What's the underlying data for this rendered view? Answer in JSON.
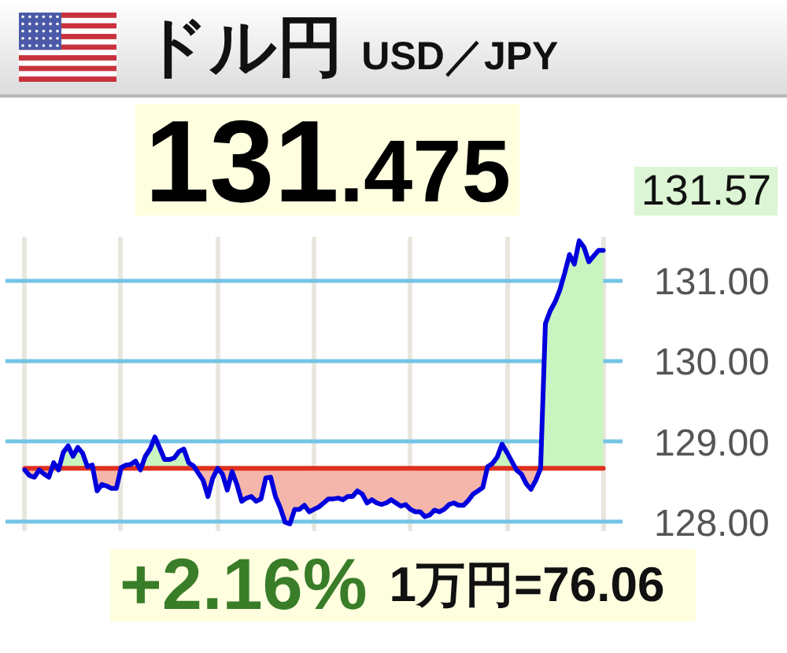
{
  "chart_data": {
    "type": "line",
    "title": "ドル円 USD／JPY",
    "subtitle": "131.475",
    "categories": [
      null,
      null,
      null,
      null,
      null,
      null,
      null,
      null,
      null,
      null,
      null,
      null,
      null,
      null,
      null,
      null,
      null,
      null,
      null,
      null,
      null,
      null,
      null,
      null,
      null,
      null,
      null,
      null,
      null,
      null,
      null,
      null,
      null,
      null,
      null,
      null,
      null,
      null,
      null,
      null,
      null,
      null,
      null,
      null,
      null,
      null,
      null,
      null,
      null,
      null,
      null,
      null,
      null,
      null,
      null,
      null,
      null,
      null,
      null,
      null,
      null,
      null,
      null,
      null,
      null,
      null,
      null,
      null,
      null,
      null,
      null,
      null,
      null,
      null,
      null,
      null,
      null,
      null,
      null,
      null,
      null,
      null,
      null,
      null,
      null,
      null,
      null,
      null,
      null,
      null,
      null,
      null,
      null,
      null,
      null,
      null,
      null,
      null,
      null,
      null,
      null,
      null,
      null,
      null,
      null,
      null,
      null,
      null,
      null,
      null,
      null,
      null,
      null,
      null,
      null,
      null,
      null,
      null,
      null,
      null,
      null
    ],
    "series": [
      {
        "color": "#e0301e",
        "values": [
          128.67,
          128.67,
          128.67,
          128.67,
          128.67,
          128.67,
          128.67,
          128.67,
          128.67,
          128.67,
          128.67,
          128.67,
          128.67,
          128.67,
          128.67,
          128.67,
          128.67,
          128.67,
          128.67,
          128.67,
          128.67,
          128.67,
          128.67,
          128.67,
          128.67,
          128.67,
          128.67,
          128.67,
          128.67,
          128.67,
          128.67,
          128.67,
          128.67,
          128.67,
          128.67,
          128.67,
          128.67,
          128.67,
          128.67,
          128.67,
          128.67,
          128.67,
          128.67,
          128.67,
          128.67,
          128.67,
          128.67,
          128.67,
          128.67,
          128.67,
          128.67,
          128.67,
          128.67,
          128.67,
          128.67,
          128.67,
          128.67,
          128.67,
          128.67,
          128.67,
          128.67,
          128.67,
          128.67,
          128.67,
          128.67,
          128.67,
          128.67,
          128.67,
          128.67,
          128.67,
          128.67,
          128.67,
          128.67,
          128.67,
          128.67,
          128.67,
          128.67,
          128.67,
          128.67,
          128.67,
          128.67,
          128.67,
          128.67,
          128.67,
          128.67,
          128.67,
          128.67,
          128.67,
          128.67,
          128.67,
          128.67,
          128.67,
          128.67,
          128.67,
          128.67,
          128.67,
          128.67,
          128.67,
          128.67,
          128.67,
          128.67,
          128.67,
          128.67,
          128.67,
          128.67,
          128.67,
          128.67,
          128.67,
          128.67,
          128.67,
          128.67,
          128.67,
          128.67,
          128.67,
          128.67,
          128.67,
          128.67,
          128.67,
          128.67,
          128.67,
          128.67
        ],
        "lower": [
          128.65,
          128.58,
          128.56,
          128.65,
          128.6,
          128.56,
          128.67,
          128.65,
          128.67,
          128.67,
          128.67,
          128.67,
          128.67,
          128.67,
          128.67,
          128.39,
          128.47,
          128.45,
          128.42,
          128.42,
          128.67,
          128.67,
          128.67,
          128.67,
          128.65,
          128.67,
          128.67,
          128.67,
          128.67,
          128.67,
          128.67,
          128.67,
          128.67,
          128.67,
          128.67,
          128.67,
          128.61,
          128.52,
          128.32,
          128.55,
          128.67,
          128.6,
          128.4,
          128.63,
          128.47,
          128.26,
          128.3,
          128.32,
          128.26,
          128.29,
          128.55,
          128.56,
          128.32,
          128.18,
          128.0,
          127.98,
          128.16,
          128.16,
          128.21,
          128.13,
          128.16,
          128.19,
          128.24,
          128.29,
          128.29,
          128.3,
          128.28,
          128.32,
          128.32,
          128.39,
          128.35,
          128.24,
          128.28,
          128.24,
          128.22,
          128.24,
          128.28,
          128.24,
          128.2,
          128.22,
          128.16,
          128.13,
          128.13,
          128.07,
          128.09,
          128.15,
          128.13,
          128.16,
          128.22,
          128.24,
          128.21,
          128.21,
          128.27,
          128.35,
          128.39,
          128.43,
          128.67,
          128.67,
          128.67,
          128.67,
          128.67,
          128.67,
          128.65,
          128.6,
          128.48,
          128.41,
          128.52,
          128.67,
          128.67,
          128.67,
          128.67,
          128.67,
          128.67,
          128.67,
          128.67,
          128.67,
          128.67,
          128.67,
          128.67,
          128.67,
          128.67
        ],
        "upper": [
          128.67,
          128.67,
          128.67,
          128.67,
          128.67,
          128.67,
          128.67,
          128.67,
          128.67,
          128.67,
          128.67,
          128.67,
          128.67,
          128.67,
          128.67,
          128.67,
          128.67,
          128.67,
          128.67,
          128.67,
          128.67,
          128.67,
          128.67,
          128.67,
          128.67,
          128.67,
          128.67,
          128.67,
          128.67,
          128.67,
          128.67,
          128.67,
          128.67,
          128.67,
          128.67,
          128.67,
          128.67,
          128.67,
          128.67,
          128.67,
          128.67,
          128.67,
          128.67,
          128.67,
          128.67,
          128.67,
          128.67,
          128.67,
          128.67,
          128.67,
          128.67,
          128.67,
          128.67,
          128.67,
          128.67,
          128.67,
          128.67,
          128.67,
          128.67,
          128.67,
          128.67,
          128.67,
          128.67,
          128.67,
          128.67,
          128.67,
          128.67,
          128.67,
          128.67,
          128.67,
          128.67,
          128.67,
          128.67,
          128.67,
          128.67,
          128.67,
          128.67,
          128.67,
          128.67,
          128.67,
          128.67,
          128.67,
          128.67,
          128.67,
          128.67,
          128.67,
          128.67,
          128.67,
          128.67,
          128.67,
          128.67,
          128.67,
          128.67,
          128.67,
          128.67,
          128.67,
          128.67,
          128.67,
          128.67,
          128.67,
          128.67,
          128.67,
          128.67,
          128.67,
          128.67,
          128.67,
          128.67,
          128.67,
          128.67,
          128.67,
          128.67,
          128.67,
          128.67,
          128.67,
          128.67,
          128.67,
          128.67,
          128.67,
          128.67,
          128.67,
          128.67
        ]
      },
      {
        "color": "#0000dd",
        "values": [
          128.65,
          128.58,
          128.56,
          128.65,
          128.6,
          128.56,
          128.74,
          128.65,
          128.87,
          128.95,
          128.82,
          128.93,
          128.86,
          128.69,
          128.71,
          128.39,
          128.47,
          128.45,
          128.42,
          128.42,
          128.68,
          128.71,
          128.72,
          128.76,
          128.65,
          128.82,
          128.91,
          129.06,
          128.92,
          128.78,
          128.78,
          128.8,
          128.88,
          128.91,
          128.74,
          128.7,
          128.61,
          128.52,
          128.32,
          128.55,
          128.67,
          128.6,
          128.4,
          128.63,
          128.47,
          128.26,
          128.3,
          128.32,
          128.26,
          128.29,
          128.55,
          128.56,
          128.32,
          128.18,
          128.0,
          127.98,
          128.16,
          128.16,
          128.21,
          128.13,
          128.16,
          128.19,
          128.24,
          128.29,
          128.29,
          128.3,
          128.28,
          128.32,
          128.32,
          128.39,
          128.35,
          128.24,
          128.28,
          128.24,
          128.22,
          128.24,
          128.28,
          128.24,
          128.2,
          128.22,
          128.16,
          128.13,
          128.13,
          128.07,
          128.09,
          128.15,
          128.13,
          128.16,
          128.22,
          128.24,
          128.21,
          128.21,
          128.27,
          128.35,
          128.39,
          128.43,
          128.69,
          128.73,
          128.81,
          128.97,
          128.87,
          128.76,
          128.65,
          128.6,
          128.48,
          128.41,
          128.52,
          128.67,
          130.47,
          130.63,
          130.74,
          130.89,
          131.1,
          131.33,
          131.21,
          131.5,
          131.42,
          131.24,
          131.31,
          131.38,
          131.38
        ],
        "lower": [
          128.67,
          128.67,
          128.67,
          128.67,
          128.67,
          128.67,
          128.67,
          128.67,
          128.67,
          128.67,
          128.67,
          128.67,
          128.67,
          128.67,
          128.67,
          128.67,
          128.67,
          128.67,
          128.67,
          128.67,
          128.67,
          128.67,
          128.67,
          128.67,
          128.67,
          128.67,
          128.67,
          128.67,
          128.67,
          128.67,
          128.67,
          128.67,
          128.67,
          128.67,
          128.67,
          128.67,
          128.67,
          128.67,
          128.67,
          128.67,
          128.67,
          128.67,
          128.67,
          128.67,
          128.67,
          128.67,
          128.67,
          128.67,
          128.67,
          128.67,
          128.67,
          128.67,
          128.67,
          128.67,
          128.67,
          128.67,
          128.67,
          128.67,
          128.67,
          128.67,
          128.67,
          128.67,
          128.67,
          128.67,
          128.67,
          128.67,
          128.67,
          128.67,
          128.67,
          128.67,
          128.67,
          128.67,
          128.67,
          128.67,
          128.67,
          128.67,
          128.67,
          128.67,
          128.67,
          128.67,
          128.67,
          128.67,
          128.67,
          128.67,
          128.67,
          128.67,
          128.67,
          128.67,
          128.67,
          128.67,
          128.67,
          128.67,
          128.67,
          128.67,
          128.67,
          128.67,
          128.67,
          128.67,
          128.67,
          128.67,
          128.67,
          128.67,
          128.67,
          128.67,
          128.67,
          128.67,
          128.67,
          128.67,
          128.67,
          128.67,
          128.67,
          128.67,
          128.67,
          128.67,
          128.67,
          128.67,
          128.67,
          128.67,
          128.67,
          128.67,
          128.67
        ],
        "upper": [
          128.67,
          128.67,
          128.67,
          128.67,
          128.67,
          128.67,
          128.74,
          128.67,
          128.87,
          128.95,
          128.82,
          128.93,
          128.86,
          128.69,
          128.71,
          128.67,
          128.67,
          128.67,
          128.67,
          128.67,
          128.68,
          128.71,
          128.72,
          128.76,
          128.67,
          128.82,
          128.91,
          129.06,
          128.92,
          128.78,
          128.78,
          128.8,
          128.88,
          128.91,
          128.74,
          128.7,
          128.67,
          128.67,
          128.67,
          128.67,
          128.67,
          128.67,
          128.67,
          128.67,
          128.67,
          128.67,
          128.67,
          128.67,
          128.67,
          128.67,
          128.67,
          128.67,
          128.67,
          128.67,
          128.67,
          128.67,
          128.67,
          128.67,
          128.67,
          128.67,
          128.67,
          128.67,
          128.67,
          128.67,
          128.67,
          128.67,
          128.67,
          128.67,
          128.67,
          128.67,
          128.67,
          128.67,
          128.67,
          128.67,
          128.67,
          128.67,
          128.67,
          128.67,
          128.67,
          128.67,
          128.67,
          128.67,
          128.67,
          128.67,
          128.67,
          128.67,
          128.67,
          128.67,
          128.67,
          128.67,
          128.67,
          128.67,
          128.67,
          128.67,
          128.67,
          128.67,
          128.69,
          128.73,
          128.81,
          128.97,
          128.87,
          128.76,
          128.67,
          128.67,
          128.67,
          128.67,
          128.67,
          128.67,
          130.47,
          130.63,
          130.74,
          130.89,
          131.1,
          131.33,
          131.21,
          131.5,
          131.42,
          131.24,
          131.31,
          131.38,
          131.38
        ]
      }
    ],
    "ylim": [
      127.89,
      131.55
    ],
    "yticks": [
      {
        "value": 128,
        "label": "128.00"
      },
      {
        "value": 129,
        "label": "129.00"
      },
      {
        "value": 130,
        "label": "130.00"
      },
      {
        "value": 131,
        "label": "131.00"
      }
    ],
    "grid": true,
    "line_style": "solid",
    "annotations": [
      "+2.16%",
      "1万円=76.06",
      "131.57"
    ]
  }
}
